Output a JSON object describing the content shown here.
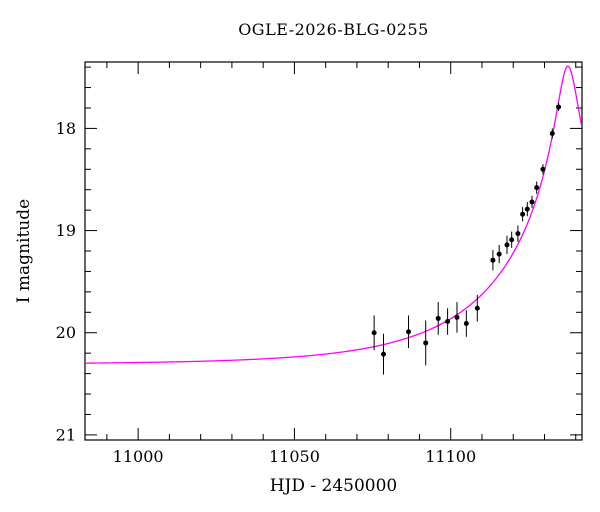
{
  "chart_data": {
    "type": "scatter",
    "title": "OGLE-2026-BLG-0255",
    "xlabel": "HJD - 2450000",
    "ylabel": "I magnitude",
    "xlim": [
      10983,
      11142
    ],
    "ylim": [
      17.35,
      21.05
    ],
    "y_inverted": true,
    "grid": false,
    "legend": "none",
    "xticks": {
      "major": [
        11000,
        11050,
        11100
      ],
      "labels": [
        "11000",
        "11050",
        "11100"
      ],
      "minor_step": 10
    },
    "yticks": {
      "major": [
        18,
        19,
        20,
        21
      ],
      "labels": [
        "18",
        "19",
        "20",
        "21"
      ],
      "minor_step": 0.2
    },
    "colors": {
      "model_curve": "#ff00ff",
      "data_points": "#000000",
      "frame": "#000000",
      "background": "#ffffff"
    },
    "model": {
      "name": "microlensing-model-curve",
      "type": "paczynski",
      "t0": 11137.5,
      "tE": 46,
      "u0": 0.068,
      "baseline_mag": 20.31,
      "peak_mag": 17.39
    },
    "series": [
      {
        "name": "I-band photometry",
        "type": "scatter_with_errorbars",
        "color": "#000000",
        "points_format": [
          "hjd_minus_2450000",
          "i_magnitude",
          "error"
        ],
        "points": [
          [
            11075.5,
            20.0,
            0.17
          ],
          [
            11078.5,
            20.21,
            0.2
          ],
          [
            11086.5,
            19.99,
            0.16
          ],
          [
            11092.0,
            20.1,
            0.22
          ],
          [
            11096.0,
            19.86,
            0.16
          ],
          [
            11099.0,
            19.89,
            0.13
          ],
          [
            11102.0,
            19.85,
            0.15
          ],
          [
            11105.0,
            19.91,
            0.13
          ],
          [
            11108.5,
            19.76,
            0.13
          ],
          [
            11113.5,
            19.29,
            0.1
          ],
          [
            11115.5,
            19.23,
            0.09
          ],
          [
            11118.0,
            19.14,
            0.09
          ],
          [
            11119.5,
            19.09,
            0.08
          ],
          [
            11121.5,
            19.03,
            0.08
          ],
          [
            11123.0,
            18.84,
            0.07
          ],
          [
            11124.5,
            18.79,
            0.07
          ],
          [
            11126.0,
            18.72,
            0.06
          ],
          [
            11127.5,
            18.58,
            0.06
          ],
          [
            11129.5,
            18.4,
            0.05
          ],
          [
            11132.5,
            18.05,
            0.05
          ],
          [
            11134.5,
            17.79,
            0.04
          ]
        ]
      },
      {
        "name": "microlensing model light curve",
        "type": "line",
        "color": "#ff00ff"
      }
    ]
  }
}
